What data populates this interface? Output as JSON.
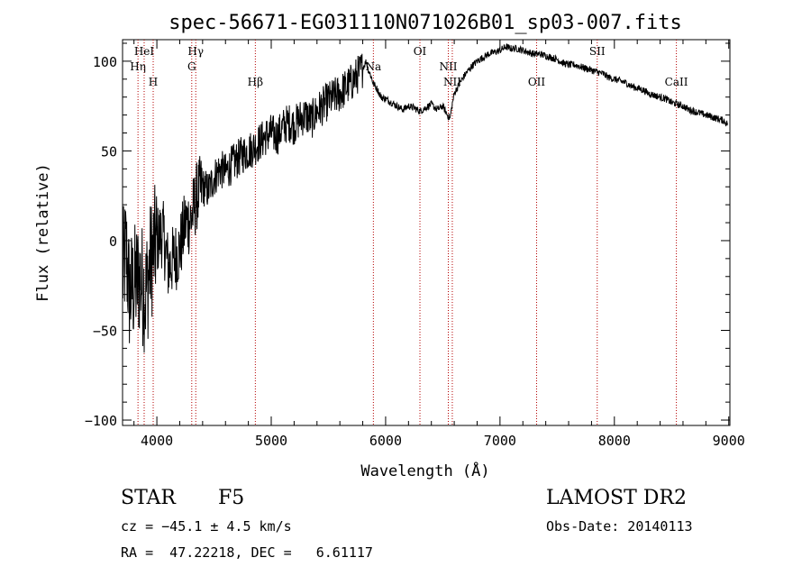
{
  "chart_data": {
    "type": "line",
    "title": "spec-56671-EG031110N071026B01_sp03-007.fits",
    "xlabel": "Wavelength (Å)",
    "ylabel": "Flux (relative)",
    "xlim": [
      3700,
      9010
    ],
    "ylim": [
      -103,
      112
    ],
    "x_ticks": [
      "4000",
      "5000",
      "6000",
      "7000",
      "8000",
      "9000"
    ],
    "y_ticks": [
      "100",
      "50",
      "0",
      "−50",
      "−100"
    ],
    "grid": false,
    "series": [
      {
        "x": [
          3700,
          3730,
          3760,
          3800,
          3850,
          3900,
          3950,
          4000,
          4050,
          4100,
          4150,
          4200,
          4250,
          4300,
          4350,
          4400,
          4450,
          4500,
          4550,
          4600,
          4650,
          4700,
          4750,
          4800,
          4850,
          4900,
          4950,
          5000,
          5050,
          5100,
          5150,
          5200,
          5250,
          5300,
          5350,
          5400,
          5450,
          5500,
          5550,
          5600,
          5650,
          5700,
          5750,
          5800,
          5830,
          5850,
          5870,
          5890,
          5910,
          5930,
          5960,
          6000,
          6050,
          6100,
          6150,
          6200,
          6250,
          6300,
          6350,
          6400,
          6450,
          6500,
          6540,
          6563,
          6580,
          6600,
          6650,
          6700,
          6750,
          6800,
          6850,
          6900,
          6950,
          7000,
          7050,
          7100,
          7150,
          7200,
          7250,
          7300,
          7350,
          7400,
          7450,
          7500,
          7550,
          7600,
          7650,
          7700,
          7750,
          7800,
          7850,
          7900,
          7950,
          8000,
          8050,
          8100,
          8150,
          8200,
          8250,
          8300,
          8350,
          8400,
          8450,
          8500,
          8550,
          8600,
          8650,
          8700,
          8750,
          8800,
          8850,
          8900,
          8950,
          8990
        ],
        "y": [
          -20,
          -5,
          -30,
          -25,
          -20,
          -30,
          -10,
          0,
          5,
          -15,
          -10,
          -5,
          10,
          12,
          25,
          30,
          28,
          35,
          40,
          38,
          42,
          45,
          48,
          50,
          52,
          55,
          58,
          60,
          58,
          63,
          66,
          64,
          68,
          70,
          67,
          72,
          75,
          78,
          80,
          82,
          85,
          88,
          92,
          96,
          100,
          95,
          92,
          88,
          86,
          84,
          80,
          79,
          77,
          75,
          73,
          75,
          74,
          72,
          74,
          76,
          73,
          75,
          70,
          68,
          75,
          82,
          88,
          93,
          97,
          100,
          102,
          104,
          105,
          106,
          108,
          107,
          107,
          106,
          105,
          104,
          104,
          103,
          102,
          101,
          99,
          98,
          98,
          97,
          96,
          95,
          94,
          93,
          91,
          90,
          89,
          88,
          86,
          85,
          84,
          82,
          81,
          80,
          79,
          77,
          76,
          75,
          73,
          72,
          71,
          70,
          69,
          68,
          67,
          65
        ]
      }
    ],
    "lines": [
      {
        "label": "HeI",
        "x": 3889,
        "pos": "top"
      },
      {
        "label": "Hη",
        "x": 3835,
        "pos": "mid"
      },
      {
        "label": "H",
        "x": 3968,
        "pos": "low"
      },
      {
        "label": "Hγ",
        "x": 4340,
        "pos": "top"
      },
      {
        "label": "G",
        "x": 4305,
        "pos": "mid"
      },
      {
        "label": "Hβ",
        "x": 4861,
        "pos": "low"
      },
      {
        "label": "Na",
        "x": 5893,
        "pos": "mid"
      },
      {
        "label": "OI",
        "x": 6300,
        "pos": "top"
      },
      {
        "label": "NII",
        "x": 6548,
        "pos": "mid"
      },
      {
        "label": "NII",
        "x": 6583,
        "pos": "low"
      },
      {
        "label": "OII",
        "x": 7320,
        "pos": "low"
      },
      {
        "label": "SII",
        "x": 7850,
        "pos": "top"
      },
      {
        "label": "CaII",
        "x": 8542,
        "pos": "low"
      }
    ]
  },
  "info": {
    "object_class": "STAR",
    "subclass": "F5",
    "cz": "cz = −45.1 ± 4.5 km/s",
    "coords": "RA =  47.22218, DEC =   6.61117",
    "survey": "LAMOST DR2",
    "obs_date": "Obs-Date: 20140113"
  },
  "colors": {
    "spectrum": "#000000",
    "line_marker": "#b40000",
    "background": "#ffffff"
  }
}
